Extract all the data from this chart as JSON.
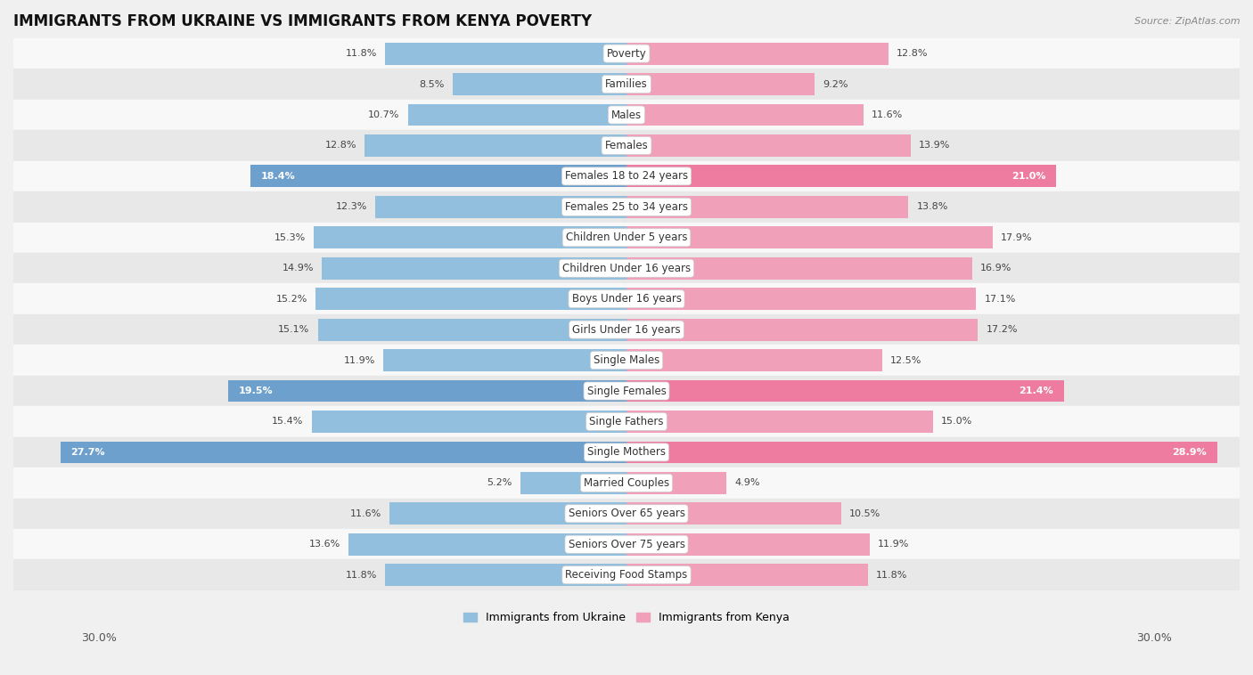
{
  "title": "IMMIGRANTS FROM UKRAINE VS IMMIGRANTS FROM KENYA POVERTY",
  "source": "Source: ZipAtlas.com",
  "categories": [
    "Poverty",
    "Families",
    "Males",
    "Females",
    "Females 18 to 24 years",
    "Females 25 to 34 years",
    "Children Under 5 years",
    "Children Under 16 years",
    "Boys Under 16 years",
    "Girls Under 16 years",
    "Single Males",
    "Single Females",
    "Single Fathers",
    "Single Mothers",
    "Married Couples",
    "Seniors Over 65 years",
    "Seniors Over 75 years",
    "Receiving Food Stamps"
  ],
  "ukraine_values": [
    11.8,
    8.5,
    10.7,
    12.8,
    18.4,
    12.3,
    15.3,
    14.9,
    15.2,
    15.1,
    11.9,
    19.5,
    15.4,
    27.7,
    5.2,
    11.6,
    13.6,
    11.8
  ],
  "kenya_values": [
    12.8,
    9.2,
    11.6,
    13.9,
    21.0,
    13.8,
    17.9,
    16.9,
    17.1,
    17.2,
    12.5,
    21.4,
    15.0,
    28.9,
    4.9,
    10.5,
    11.9,
    11.8
  ],
  "ukraine_color": "#92bfde",
  "kenya_color": "#f0a0b8",
  "ukraine_highlight_color": "#6da0cc",
  "kenya_highlight_color": "#ee7ca0",
  "highlight_rows": [
    4,
    11,
    13
  ],
  "background_color": "#f0f0f0",
  "row_bg_light": "#f8f8f8",
  "row_bg_dark": "#e8e8e8",
  "max_value": 30.0,
  "legend_ukraine": "Immigrants from Ukraine",
  "legend_kenya": "Immigrants from Kenya",
  "title_fontsize": 12,
  "label_fontsize": 8.5,
  "value_fontsize": 8.0
}
